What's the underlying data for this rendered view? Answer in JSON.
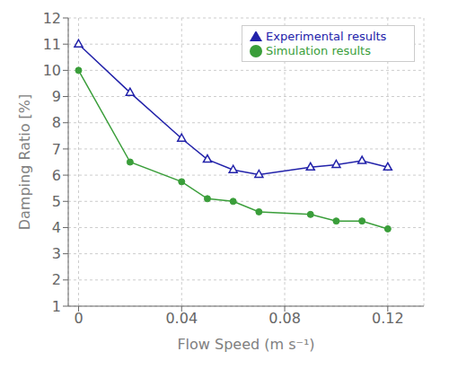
{
  "chart_data": {
    "type": "line",
    "x": [
      0,
      0.02,
      0.04,
      0.05,
      0.06,
      0.07,
      0.09,
      0.1,
      0.11,
      0.12
    ],
    "series": [
      {
        "name": "Simulation results",
        "color": "#3a9e3a",
        "marker": "circle",
        "values": [
          10.0,
          6.5,
          5.75,
          5.1,
          5.0,
          4.6,
          4.5,
          4.25,
          4.25,
          3.95
        ]
      },
      {
        "name": "Experimental results",
        "color": "#2222aa",
        "marker": "triangle",
        "values": [
          11.0,
          9.15,
          7.4,
          6.6,
          6.2,
          6.02,
          6.3,
          6.4,
          6.55,
          6.3
        ]
      }
    ],
    "xlabel": "Flow Speed (m s⁻¹)",
    "ylabel": "Damping Ratio [%]",
    "xlim": [
      -0.004,
      0.134
    ],
    "ylim": [
      1,
      12
    ],
    "xticks": [
      0,
      0.04,
      0.08,
      0.12
    ],
    "yticks": [
      1,
      2,
      3,
      4,
      5,
      6,
      7,
      8,
      9,
      10,
      11,
      12
    ],
    "grid": true,
    "legend": "upper right"
  }
}
